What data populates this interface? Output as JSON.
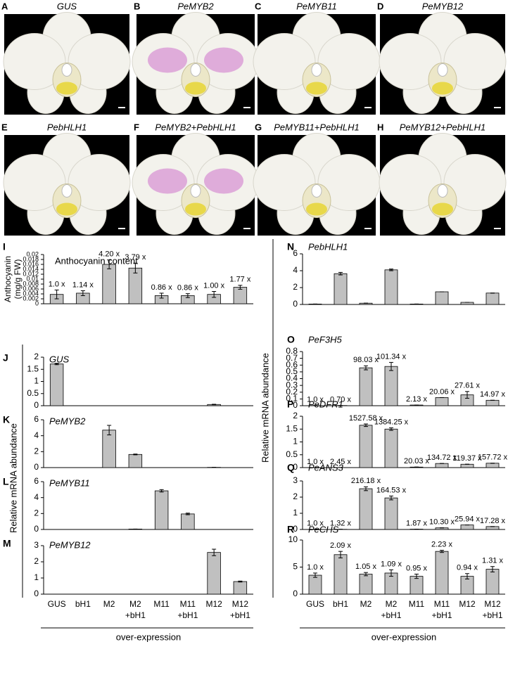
{
  "photo_panels": [
    {
      "letter": "A",
      "label": "GUS"
    },
    {
      "letter": "B",
      "label": "PeMYB2"
    },
    {
      "letter": "C",
      "label": "PeMYB11"
    },
    {
      "letter": "D",
      "label": "PeMYB12"
    },
    {
      "letter": "E",
      "label": "PebHLH1"
    },
    {
      "letter": "F",
      "label": "PeMYB2+PebHLH1"
    },
    {
      "letter": "G",
      "label": "PeMYB11+PebHLH1"
    },
    {
      "letter": "H",
      "label": "PeMYB12+PebHLH1"
    }
  ],
  "chart_data": [
    {
      "type": "bar",
      "panel": "I",
      "title": "Anthocyanin content",
      "ylabel_lines": [
        "Anthocyanin",
        "(mg/g FW)"
      ],
      "ylim": [
        0,
        0.02
      ],
      "yticks": [
        0,
        0.002,
        0.004,
        0.006,
        0.008,
        0.01,
        0.012,
        0.014,
        0.016,
        0.018,
        0.02
      ],
      "values": [
        0.0038,
        0.0043,
        0.016,
        0.0145,
        0.0033,
        0.0033,
        0.0038,
        0.0067
      ],
      "errors": [
        0.0018,
        0.001,
        0.0018,
        0.002,
        0.001,
        0.0008,
        0.0012,
        0.0008
      ],
      "annotations": [
        "1.0 x",
        "1.14 x",
        "4.20 x",
        "3.79 x",
        "0.86 x",
        "0.86 x",
        "1.00 x",
        "1.77 x"
      ],
      "color": "#c0c0c0"
    },
    {
      "type": "bar",
      "panel": "J",
      "title": "GUS",
      "ylabel": "Relative mRNA abundance",
      "ylim": [
        0,
        2
      ],
      "yticks": [
        0,
        0.5,
        1,
        1.5,
        2
      ],
      "values": [
        1.72,
        0,
        0,
        0,
        0,
        0,
        0.05,
        0
      ],
      "errors": [
        0.03,
        0,
        0,
        0,
        0,
        0,
        0.01,
        0
      ],
      "color": "#c0c0c0"
    },
    {
      "type": "bar",
      "panel": "K",
      "title": "PeMYB2",
      "ylim": [
        0,
        6
      ],
      "yticks": [
        0,
        2,
        4,
        6
      ],
      "values": [
        0,
        0,
        4.7,
        1.65,
        0,
        0,
        0.03,
        0
      ],
      "errors": [
        0,
        0,
        0.6,
        0.05,
        0,
        0,
        0,
        0
      ],
      "color": "#c0c0c0"
    },
    {
      "type": "bar",
      "panel": "L",
      "title": "PeMYB11",
      "ylim": [
        0,
        6
      ],
      "yticks": [
        0,
        2,
        4,
        6
      ],
      "values": [
        0,
        0,
        0,
        0.05,
        4.85,
        1.95,
        0,
        0
      ],
      "errors": [
        0,
        0,
        0,
        0,
        0.15,
        0.1,
        0,
        0
      ],
      "color": "#c0c0c0"
    },
    {
      "type": "bar",
      "panel": "M",
      "title": "PeMYB12",
      "ylim": [
        0,
        3
      ],
      "yticks": [
        0,
        1,
        2,
        3
      ],
      "values": [
        0,
        0,
        0,
        0,
        0,
        0,
        2.58,
        0.78
      ],
      "errors": [
        0,
        0,
        0,
        0,
        0,
        0,
        0.2,
        0.03
      ],
      "categories": [
        "GUS",
        "bH1",
        "M2",
        "M2\n+bH1",
        "M11",
        "M11\n+bH1",
        "M12",
        "M12\n+bH1"
      ],
      "xlabel": "over-expression",
      "color": "#c0c0c0"
    },
    {
      "type": "bar",
      "panel": "N",
      "title": "PebHLH1",
      "ylabel": "Relative mRNA abundance",
      "ylim": [
        0,
        6
      ],
      "yticks": [
        0,
        2,
        4,
        6
      ],
      "values": [
        0.05,
        3.65,
        0.15,
        4.1,
        0.05,
        1.5,
        0.25,
        1.35
      ],
      "errors": [
        0,
        0.15,
        0,
        0.1,
        0,
        0,
        0,
        0
      ],
      "color": "#c0c0c0"
    },
    {
      "type": "bar",
      "panel": "O",
      "title": "PeF3H5",
      "ylim": [
        0,
        0.8
      ],
      "yticks": [
        0,
        0.1,
        0.2,
        0.3,
        0.4,
        0.5,
        0.6,
        0.7,
        0.8
      ],
      "values": [
        0.002,
        0.003,
        0.56,
        0.58,
        0.01,
        0.12,
        0.16,
        0.08
      ],
      "errors": [
        0,
        0,
        0.03,
        0.06,
        0,
        0,
        0.05,
        0
      ],
      "annotations": [
        "1.0 x",
        "0.70 x",
        "98.03 x",
        "101.34 x",
        "2.13 x",
        "20.06 x",
        "27.61 x",
        "14.97 x"
      ],
      "color": "#c0c0c0"
    },
    {
      "type": "bar",
      "panel": "P",
      "title": "PeDFR1",
      "ylim": [
        0,
        2
      ],
      "yticks": [
        0,
        0.5,
        1,
        1.5,
        2
      ],
      "values": [
        0.001,
        0.003,
        1.65,
        1.5,
        0.02,
        0.16,
        0.13,
        0.17
      ],
      "errors": [
        0,
        0,
        0.05,
        0.05,
        0,
        0,
        0,
        0
      ],
      "annotations": [
        "1.0 x",
        "2.45 x",
        "1527.58 x",
        "1384.25 x",
        "20.03 x",
        "134.72 x",
        "119.37 x",
        "157.72 x"
      ],
      "color": "#c0c0c0"
    },
    {
      "type": "bar",
      "panel": "Q",
      "title": "PeANS3",
      "ylim": [
        0,
        3
      ],
      "yticks": [
        0,
        1,
        2,
        3
      ],
      "values": [
        0.01,
        0.01,
        2.52,
        1.95,
        0.02,
        0.1,
        0.28,
        0.18
      ],
      "errors": [
        0,
        0,
        0.12,
        0.12,
        0,
        0,
        0,
        0
      ],
      "annotations": [
        "1.0 x",
        "1.32 x",
        "216.18 x",
        "164.53 x",
        "1.87 x",
        "10.30 x",
        "25.94 x",
        "17.28 x"
      ],
      "color": "#c0c0c0"
    },
    {
      "type": "bar",
      "panel": "R",
      "title": "PeCHS",
      "ylim": [
        0,
        10
      ],
      "yticks": [
        0,
        5,
        10
      ],
      "values": [
        3.5,
        7.3,
        3.7,
        3.9,
        3.3,
        7.9,
        3.3,
        4.6
      ],
      "errors": [
        0.4,
        0.6,
        0.3,
        0.6,
        0.4,
        0.2,
        0.5,
        0.5
      ],
      "annotations": [
        "1.0 x",
        "2.09 x",
        "1.05 x",
        "1.09 x",
        "0.95 x",
        "2.23 x",
        "0.94 x",
        "1.31 x"
      ],
      "categories": [
        "GUS",
        "bH1",
        "M2",
        "M2\n+bH1",
        "M11",
        "M11\n+bH1",
        "M12",
        "M12\n+bH1"
      ],
      "xlabel": "over-expression",
      "color": "#c0c0c0"
    }
  ]
}
